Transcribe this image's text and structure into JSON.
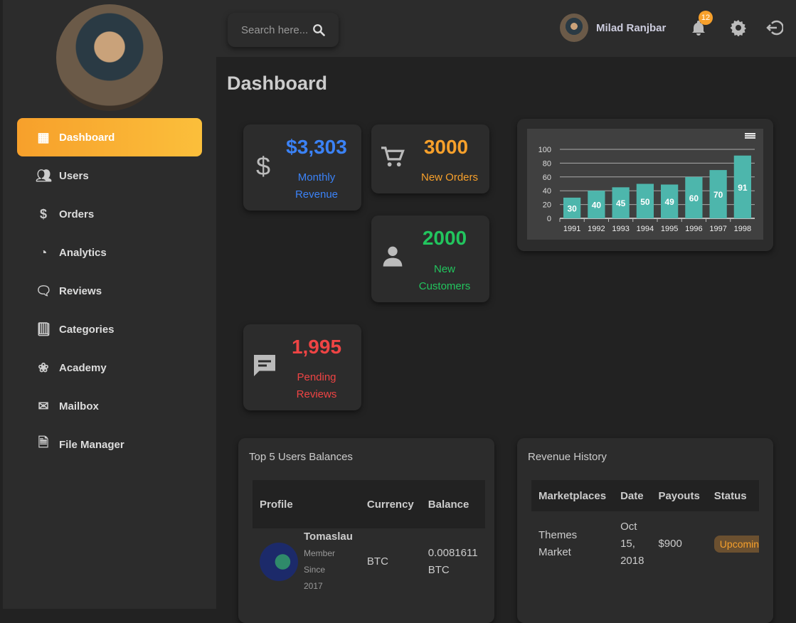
{
  "search": {
    "placeholder": "Search here..."
  },
  "header": {
    "user_name": "Milad Ranjbar",
    "notifications": "12"
  },
  "sidebar": {
    "items": [
      {
        "label": "Dashboard",
        "icon": "dashboard-icon",
        "active": true
      },
      {
        "label": "Users",
        "icon": "users-icon"
      },
      {
        "label": "Orders",
        "icon": "dollar-icon"
      },
      {
        "label": "Analytics",
        "icon": "analytics-icon"
      },
      {
        "label": "Reviews",
        "icon": "reviews-icon"
      },
      {
        "label": "Categories",
        "icon": "book-icon"
      },
      {
        "label": "Academy",
        "icon": "brain-icon"
      },
      {
        "label": "Mailbox",
        "icon": "mail-icon"
      },
      {
        "label": "File Manager",
        "icon": "file-search-icon"
      }
    ]
  },
  "page": {
    "title": "Dashboard"
  },
  "stats": {
    "revenue": {
      "value": "$3,303",
      "label": "Monthly Revenue",
      "color": "#3b82f6"
    },
    "orders": {
      "value": "3000",
      "label": "New Orders",
      "color": "#f7a02b"
    },
    "customers": {
      "value": "2000",
      "label": "New Customers",
      "color": "#22c55e"
    },
    "reviews": {
      "value": "1,995",
      "label": "Pending Reviews",
      "color": "#ef4444"
    }
  },
  "chart_data": {
    "type": "bar",
    "categories": [
      "1991",
      "1992",
      "1993",
      "1994",
      "1995",
      "1996",
      "1997",
      "1998"
    ],
    "values": [
      30,
      40,
      45,
      50,
      49,
      60,
      70,
      91
    ],
    "ylim": [
      0,
      100
    ],
    "yticks": [
      0,
      20,
      40,
      60,
      80,
      100
    ],
    "grid": true,
    "color": "#4db6ac",
    "data_labels": true
  },
  "balances": {
    "title": "Top 5 Users Balances",
    "columns": [
      "Profile",
      "Currency",
      "Balance"
    ],
    "rows": [
      {
        "name": "Tomaslau",
        "sub": "Member Since 2017",
        "currency": "BTC",
        "balance": "0.0081611 BTC"
      }
    ]
  },
  "revenue_history": {
    "title": "Revenue History",
    "columns": [
      "Marketplaces",
      "Date",
      "Payouts",
      "Status"
    ],
    "rows": [
      {
        "market": "Themes Market",
        "date": "Oct 15, 2018",
        "payout": "$900",
        "status": "Upcoming"
      }
    ]
  }
}
